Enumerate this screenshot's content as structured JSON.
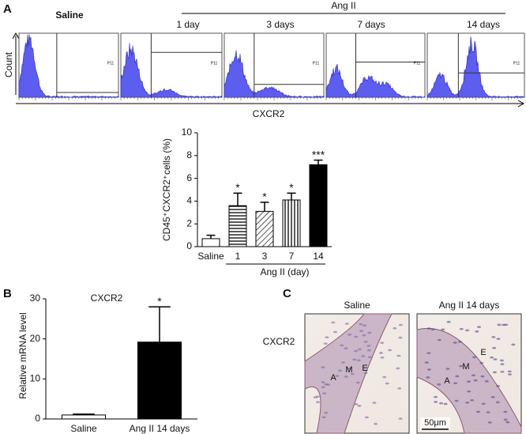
{
  "panels": [
    "A",
    "B",
    "C"
  ],
  "flow": {
    "group_label": "Ang II",
    "columns": [
      "Saline",
      "1 day",
      "3 days",
      "7 days",
      "14 days"
    ],
    "gate_label": "P11",
    "y_label": "Count",
    "x_label": "CXCR2"
  },
  "chart_data": [
    {
      "type": "bar",
      "y_label": "CD45⁺CXCR2⁺cells (%)",
      "categories": [
        "Saline",
        "1",
        "3",
        "7",
        "14"
      ],
      "values": [
        0.7,
        3.6,
        3.1,
        4.1,
        7.2
      ],
      "errors": [
        0.3,
        1.1,
        0.8,
        0.6,
        0.4
      ],
      "fills": [
        "white",
        "hlines",
        "dlines",
        "vlines",
        "black"
      ],
      "annotations": [
        {
          "index": 1,
          "text": "*"
        },
        {
          "index": 2,
          "text": "*"
        },
        {
          "index": 3,
          "text": "*"
        },
        {
          "index": 4,
          "text": "***"
        }
      ],
      "group_label": "Ang II (day)",
      "ylim": [
        0,
        10
      ],
      "yticks": [
        0,
        2,
        4,
        6,
        8,
        10
      ]
    },
    {
      "type": "bar",
      "title": "CXCR2",
      "y_label": "Relative mRNA level",
      "categories": [
        "Saline",
        "Ang II 14 days"
      ],
      "values": [
        1,
        19.2
      ],
      "errors": [
        0.2,
        8.8
      ],
      "fills": [
        "white",
        "black"
      ],
      "annotations": [
        {
          "index": 1,
          "text": "*"
        }
      ],
      "ylim": [
        0,
        30
      ],
      "yticks": [
        0,
        10,
        20,
        30
      ]
    }
  ],
  "histology": {
    "row_label": "CXCR2",
    "images": [
      {
        "title": "Saline",
        "labels": [
          "A",
          "M",
          "E"
        ]
      },
      {
        "title": "Ang II 14  days",
        "labels": [
          "E",
          "M",
          "A"
        ],
        "scale": "50μm"
      }
    ]
  }
}
